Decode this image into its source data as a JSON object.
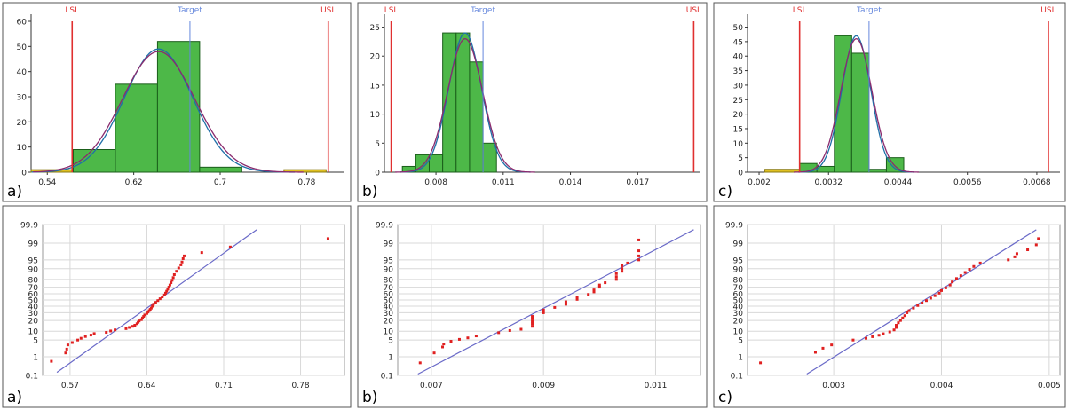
{
  "colors": {
    "bar_fill": "#4db848",
    "bar_edge": "#1a5e1a",
    "bar_outside": "#e0c020",
    "spec_line": "#e03030",
    "target_line": "#6688dd",
    "fit_curve_1": "#1f6fa8",
    "fit_curve_2": "#8a2b6e",
    "prob_line": "#6a6ac8",
    "points": "#e02020",
    "grid": "#d8d8d8",
    "panel_border": "#555555"
  },
  "chart_data": [
    {
      "type": "bar",
      "panel_label": "a)",
      "subtype": "histogram",
      "xlim": [
        0.525,
        0.815
      ],
      "ylim": [
        0,
        60
      ],
      "xticks": [
        0.54,
        0.62,
        0.7,
        0.78
      ],
      "xtick_labels": [
        "0.54",
        "0.62",
        "0.7",
        "0.78"
      ],
      "yticks": [
        0,
        10,
        20,
        30,
        40,
        50,
        60
      ],
      "ytick_labels": [
        "0",
        "10",
        "20",
        "30",
        "40",
        "50",
        "60"
      ],
      "grid": false,
      "spec_limits": [
        {
          "label": "LSL",
          "value": 0.563,
          "kind": "spec"
        },
        {
          "label": "Target",
          "value": 0.672,
          "kind": "target"
        },
        {
          "label": "USL",
          "value": 0.8,
          "kind": "spec"
        }
      ],
      "bins": [
        {
          "x0": 0.525,
          "x1": 0.564,
          "count": 1,
          "outside": true
        },
        {
          "x0": 0.564,
          "x1": 0.603,
          "count": 9,
          "outside": false
        },
        {
          "x0": 0.603,
          "x1": 0.642,
          "count": 35,
          "outside": false
        },
        {
          "x0": 0.642,
          "x1": 0.681,
          "count": 52,
          "outside": false
        },
        {
          "x0": 0.681,
          "x1": 0.72,
          "count": 2,
          "outside": false
        },
        {
          "x0": 0.759,
          "x1": 0.798,
          "count": 1,
          "outside": true
        }
      ],
      "fits": [
        {
          "mean": 0.643,
          "sd": 0.0315,
          "peak": 49
        },
        {
          "mean": 0.643,
          "sd": 0.0335,
          "peak": 48
        }
      ]
    },
    {
      "type": "bar",
      "panel_label": "b)",
      "subtype": "histogram",
      "xlim": [
        0.0057,
        0.0198
      ],
      "ylim": [
        0,
        26
      ],
      "xticks": [
        0.008,
        0.011,
        0.014,
        0.017
      ],
      "xtick_labels": [
        "0.008",
        "0.011",
        "0.014",
        "0.017"
      ],
      "yticks": [
        0,
        5,
        10,
        15,
        20,
        25
      ],
      "ytick_labels": [
        "0",
        "5",
        "10",
        "15",
        "20",
        "25"
      ],
      "grid": false,
      "spec_limits": [
        {
          "label": "LSL",
          "value": 0.006,
          "kind": "spec"
        },
        {
          "label": "Target",
          "value": 0.0101,
          "kind": "target"
        },
        {
          "label": "USL",
          "value": 0.0195,
          "kind": "spec"
        }
      ],
      "bins": [
        {
          "x0": 0.0065,
          "x1": 0.0071,
          "count": 1,
          "outside": false
        },
        {
          "x0": 0.0071,
          "x1": 0.0077,
          "count": 3,
          "outside": false
        },
        {
          "x0": 0.0077,
          "x1": 0.0083,
          "count": 3,
          "outside": false
        },
        {
          "x0": 0.0083,
          "x1": 0.0089,
          "count": 24,
          "outside": false
        },
        {
          "x0": 0.0089,
          "x1": 0.0095,
          "count": 24,
          "outside": false
        },
        {
          "x0": 0.0095,
          "x1": 0.0101,
          "count": 19,
          "outside": false
        },
        {
          "x0": 0.0101,
          "x1": 0.0107,
          "count": 5,
          "outside": false
        }
      ],
      "fits": [
        {
          "mean": 0.0093,
          "sd": 0.00073,
          "peak": 24
        },
        {
          "mean": 0.0093,
          "sd": 0.00078,
          "peak": 23
        }
      ]
    },
    {
      "type": "bar",
      "panel_label": "c)",
      "subtype": "histogram",
      "xlim": [
        0.0018,
        0.0072
      ],
      "ylim": [
        0,
        52
      ],
      "xticks": [
        0.002,
        0.0032,
        0.0044,
        0.0056,
        0.0068
      ],
      "xtick_labels": [
        "0.002",
        "0.0032",
        "0.0044",
        "0.0056",
        "0.0068"
      ],
      "yticks": [
        0,
        5,
        10,
        15,
        20,
        25,
        30,
        35,
        40,
        45,
        50
      ],
      "ytick_labels": [
        "0",
        "5",
        "10",
        "15",
        "20",
        "25",
        "30",
        "35",
        "40",
        "45",
        "50"
      ],
      "grid": false,
      "spec_limits": [
        {
          "label": "LSL",
          "value": 0.0027,
          "kind": "spec"
        },
        {
          "label": "Target",
          "value": 0.0039,
          "kind": "target"
        },
        {
          "label": "USL",
          "value": 0.007,
          "kind": "spec"
        }
      ],
      "bins": [
        {
          "x0": 0.0021,
          "x1": 0.0027,
          "count": 1,
          "outside": true
        },
        {
          "x0": 0.0027,
          "x1": 0.003,
          "count": 3,
          "outside": false
        },
        {
          "x0": 0.003,
          "x1": 0.0033,
          "count": 2,
          "outside": false
        },
        {
          "x0": 0.0033,
          "x1": 0.0036,
          "count": 47,
          "outside": false
        },
        {
          "x0": 0.0036,
          "x1": 0.0039,
          "count": 41,
          "outside": false
        },
        {
          "x0": 0.0039,
          "x1": 0.0042,
          "count": 1,
          "outside": false
        },
        {
          "x0": 0.0042,
          "x1": 0.0045,
          "count": 5,
          "outside": false
        }
      ],
      "fits": [
        {
          "mean": 0.00368,
          "sd": 0.00025,
          "peak": 47
        },
        {
          "mean": 0.00368,
          "sd": 0.00027,
          "peak": 46
        }
      ]
    },
    {
      "type": "scatter",
      "panel_label": "a)",
      "subtype": "normal-probability",
      "xlim": [
        0.545,
        0.82
      ],
      "xticks": [
        0.57,
        0.64,
        0.71,
        0.78
      ],
      "xtick_labels": [
        "0.57",
        "0.64",
        "0.71",
        "0.78"
      ],
      "yticks": [
        0.1,
        1,
        5,
        10,
        20,
        30,
        40,
        50,
        60,
        70,
        80,
        90,
        95,
        99,
        99.9
      ],
      "ytick_labels": [
        "0.1",
        "1",
        "5",
        "10",
        "20",
        "30",
        "40",
        "50",
        "60",
        "70",
        "80",
        "90",
        "95",
        "99",
        "99.9"
      ],
      "grid": true,
      "fit_line": [
        [
          0.558,
          0.15
        ],
        [
          0.74,
          99.8
        ]
      ],
      "points": [
        [
          0.553,
          0.6
        ],
        [
          0.566,
          1.5
        ],
        [
          0.567,
          2.2
        ],
        [
          0.568,
          3.2
        ],
        [
          0.572,
          4.0
        ],
        [
          0.577,
          5.0
        ],
        [
          0.58,
          5.8
        ],
        [
          0.584,
          6.7
        ],
        [
          0.589,
          7.5
        ],
        [
          0.592,
          8.4
        ],
        [
          0.603,
          9.2
        ],
        [
          0.607,
          10.2
        ],
        [
          0.611,
          11.0
        ],
        [
          0.621,
          12.0
        ],
        [
          0.624,
          13.0
        ],
        [
          0.627,
          14.0
        ],
        [
          0.629,
          15.0
        ],
        [
          0.631,
          16.5
        ],
        [
          0.632,
          18.0
        ],
        [
          0.633,
          19.5
        ],
        [
          0.635,
          21.0
        ],
        [
          0.636,
          23.0
        ],
        [
          0.637,
          25.0
        ],
        [
          0.638,
          27.0
        ],
        [
          0.64,
          29.0
        ],
        [
          0.641,
          31.0
        ],
        [
          0.642,
          33.0
        ],
        [
          0.643,
          35.0
        ],
        [
          0.644,
          37.0
        ],
        [
          0.645,
          40.0
        ],
        [
          0.646,
          43.0
        ],
        [
          0.648,
          46.0
        ],
        [
          0.65,
          49.0
        ],
        [
          0.652,
          52.0
        ],
        [
          0.654,
          55.0
        ],
        [
          0.656,
          58.0
        ],
        [
          0.657,
          61.0
        ],
        [
          0.658,
          64.0
        ],
        [
          0.659,
          67.0
        ],
        [
          0.66,
          70.0
        ],
        [
          0.661,
          73.0
        ],
        [
          0.662,
          76.0
        ],
        [
          0.663,
          79.0
        ],
        [
          0.664,
          82.0
        ],
        [
          0.665,
          85.0
        ],
        [
          0.667,
          88.0
        ],
        [
          0.669,
          90.5
        ],
        [
          0.671,
          92.5
        ],
        [
          0.672,
          94.0
        ],
        [
          0.673,
          95.5
        ],
        [
          0.674,
          96.5
        ],
        [
          0.69,
          97.5
        ],
        [
          0.716,
          98.5
        ],
        [
          0.805,
          99.4
        ]
      ]
    },
    {
      "type": "scatter",
      "panel_label": "b)",
      "subtype": "normal-probability",
      "xlim": [
        0.0064,
        0.0118
      ],
      "xticks": [
        0.007,
        0.009,
        0.011
      ],
      "xtick_labels": [
        "0.007",
        "0.009",
        "0.011"
      ],
      "yticks": [
        0.1,
        1,
        5,
        10,
        20,
        30,
        40,
        50,
        60,
        70,
        80,
        90,
        95,
        99,
        99.9
      ],
      "ytick_labels": [
        "0.1",
        "1",
        "5",
        "10",
        "20",
        "30",
        "40",
        "50",
        "60",
        "70",
        "80",
        "90",
        "95",
        "99",
        "99.9"
      ],
      "grid": true,
      "fit_line": [
        [
          0.00676,
          0.12
        ],
        [
          0.01168,
          99.8
        ]
      ],
      "points": [
        [
          0.0068,
          0.5
        ],
        [
          0.00705,
          1.5
        ],
        [
          0.0072,
          2.6
        ],
        [
          0.00722,
          3.5
        ],
        [
          0.00735,
          4.5
        ],
        [
          0.0075,
          5.3
        ],
        [
          0.00765,
          6.0
        ],
        [
          0.0078,
          7.0
        ],
        [
          0.0082,
          9.0
        ],
        [
          0.0084,
          10.5
        ],
        [
          0.0086,
          11.5
        ],
        [
          0.0088,
          14.0
        ],
        [
          0.0088,
          16.5
        ],
        [
          0.0088,
          19.0
        ],
        [
          0.0088,
          22.0
        ],
        [
          0.0088,
          25.0
        ],
        [
          0.009,
          30.0
        ],
        [
          0.009,
          34.0
        ],
        [
          0.0092,
          38.0
        ],
        [
          0.0094,
          43.0
        ],
        [
          0.0094,
          47.0
        ],
        [
          0.0096,
          51.0
        ],
        [
          0.0096,
          55.0
        ],
        [
          0.0098,
          59.0
        ],
        [
          0.0099,
          63.0
        ],
        [
          0.0099,
          66.0
        ],
        [
          0.01,
          70.0
        ],
        [
          0.01,
          73.0
        ],
        [
          0.0101,
          76.0
        ],
        [
          0.0103,
          80.0
        ],
        [
          0.0103,
          83.0
        ],
        [
          0.0103,
          86.0
        ],
        [
          0.0104,
          88.0
        ],
        [
          0.0104,
          90.0
        ],
        [
          0.0104,
          92.0
        ],
        [
          0.0105,
          93.5
        ],
        [
          0.0107,
          95.0
        ],
        [
          0.0107,
          96.5
        ],
        [
          0.0107,
          97.8
        ],
        [
          0.0107,
          99.3
        ]
      ]
    },
    {
      "type": "scatter",
      "panel_label": "c)",
      "subtype": "normal-probability",
      "xlim": [
        0.0022,
        0.0051
      ],
      "xticks": [
        0.003,
        0.004,
        0.005
      ],
      "xtick_labels": [
        "0.003",
        "0.004",
        "0.005"
      ],
      "yticks": [
        0.1,
        1,
        5,
        10,
        20,
        30,
        40,
        50,
        60,
        70,
        80,
        90,
        95,
        99,
        99.9
      ],
      "ytick_labels": [
        "0.1",
        "1",
        "5",
        "10",
        "20",
        "30",
        "40",
        "50",
        "60",
        "70",
        "80",
        "90",
        "95",
        "99",
        "99.9"
      ],
      "grid": true,
      "fit_line": [
        [
          0.00275,
          0.12
        ],
        [
          0.00488,
          99.8
        ]
      ],
      "points": [
        [
          0.00232,
          0.5
        ],
        [
          0.00283,
          1.6
        ],
        [
          0.0029,
          2.4
        ],
        [
          0.00298,
          3.2
        ],
        [
          0.00318,
          5.0
        ],
        [
          0.0033,
          5.8
        ],
        [
          0.00336,
          6.6
        ],
        [
          0.00342,
          7.4
        ],
        [
          0.00346,
          8.3
        ],
        [
          0.00352,
          9.5
        ],
        [
          0.00356,
          11.0
        ],
        [
          0.00358,
          13.0
        ],
        [
          0.00358,
          15.0
        ],
        [
          0.0036,
          17.5
        ],
        [
          0.00362,
          20.0
        ],
        [
          0.00364,
          23.0
        ],
        [
          0.00366,
          26.0
        ],
        [
          0.00368,
          30.0
        ],
        [
          0.0037,
          33.0
        ],
        [
          0.00374,
          37.0
        ],
        [
          0.00378,
          41.0
        ],
        [
          0.00382,
          45.0
        ],
        [
          0.00386,
          49.0
        ],
        [
          0.0039,
          53.0
        ],
        [
          0.00394,
          57.0
        ],
        [
          0.00398,
          61.0
        ],
        [
          0.004,
          65.0
        ],
        [
          0.00404,
          69.0
        ],
        [
          0.00408,
          73.0
        ],
        [
          0.0041,
          77.0
        ],
        [
          0.00414,
          81.0
        ],
        [
          0.00418,
          84.0
        ],
        [
          0.00422,
          87.0
        ],
        [
          0.00426,
          89.5
        ],
        [
          0.0043,
          91.5
        ],
        [
          0.00436,
          93.5
        ],
        [
          0.00462,
          95.0
        ],
        [
          0.00468,
          96.2
        ],
        [
          0.0047,
          97.2
        ],
        [
          0.0048,
          98.0
        ],
        [
          0.00488,
          98.8
        ],
        [
          0.0049,
          99.4
        ]
      ]
    }
  ]
}
